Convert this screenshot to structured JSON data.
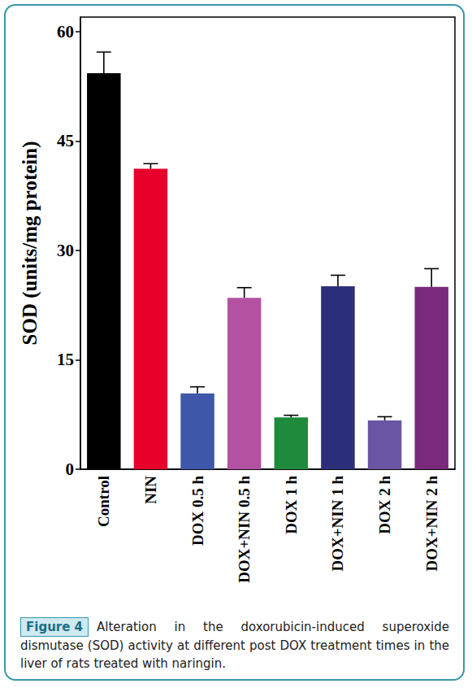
{
  "chart_data": {
    "type": "bar",
    "y_label": "SOD (units/mg protein)",
    "categories": [
      "Control",
      "NIN",
      "DOX 0.5 h",
      "DOX+NIN 0.5 h",
      "DOX 1 h",
      "DOX+NIN 1 h",
      "DOX 2 h",
      "DOX+NIN 2 h"
    ],
    "values": [
      54.3,
      41.2,
      10.4,
      23.5,
      7.1,
      25.1,
      6.7,
      25.0
    ],
    "errors": [
      2.9,
      0.7,
      0.9,
      1.4,
      0.3,
      1.5,
      0.5,
      2.5
    ],
    "colors": [
      "#000000",
      "#e8002a",
      "#3f57a8",
      "#b451a3",
      "#1f8a3c",
      "#2b2f7a",
      "#6a55a4",
      "#7a2a7a"
    ],
    "ylim": [
      0,
      62
    ],
    "yticks": [
      0,
      15,
      30,
      45,
      60
    ],
    "grid": false
  },
  "caption": {
    "label": "Figure 4",
    "text": "Alteration in the doxorubicin-induced superoxide dismutase (SOD) activity at different post DOX treatment times in the liver of rats treated with naringin."
  }
}
